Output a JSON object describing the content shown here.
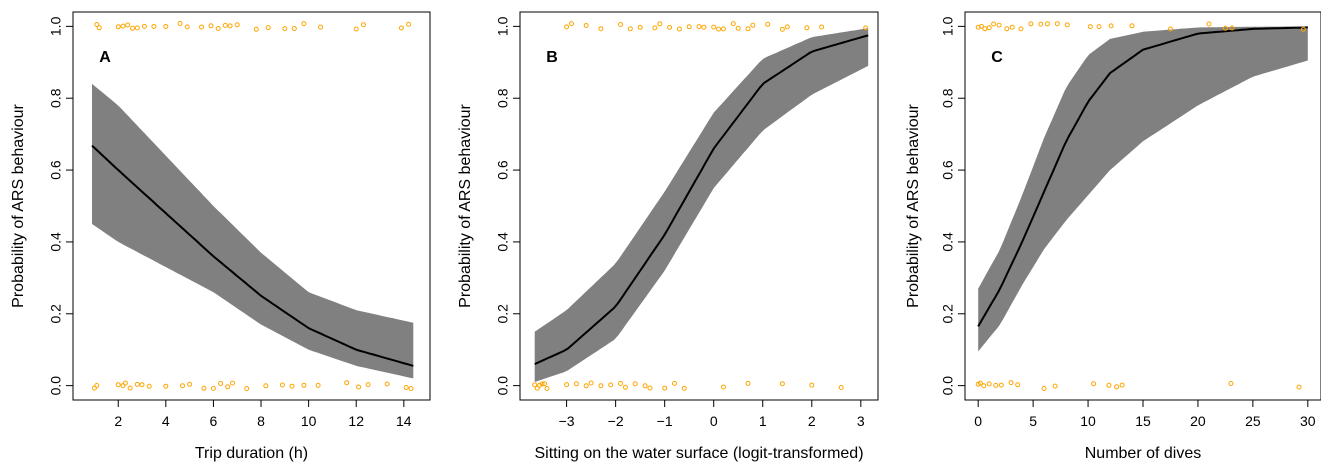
{
  "figure": {
    "colors": {
      "band": "#808080",
      "line": "#000000",
      "points": "#FFA500",
      "frame": "#000000"
    }
  },
  "chart_data": [
    {
      "type": "line",
      "panel_label": "A",
      "xlabel": "Trip duration (h)",
      "ylabel": "Probability of ARS behaviour",
      "xlim": [
        0.1,
        15.1
      ],
      "ylim": [
        -0.04,
        1.04
      ],
      "xticks": [
        2,
        4,
        6,
        8,
        10,
        12,
        14
      ],
      "yticks": [
        0.0,
        0.2,
        0.4,
        0.6,
        0.8,
        1.0
      ],
      "x_range": [
        0.9,
        14.4
      ],
      "fit": {
        "x": [
          0.9,
          2,
          4,
          6,
          8,
          10,
          12,
          14.4
        ],
        "y": [
          0.668,
          0.6,
          0.48,
          0.36,
          0.25,
          0.16,
          0.1,
          0.055
        ],
        "lower": [
          0.45,
          0.4,
          0.33,
          0.26,
          0.17,
          0.1,
          0.055,
          0.02
        ],
        "upper": [
          0.84,
          0.78,
          0.64,
          0.5,
          0.37,
          0.26,
          0.21,
          0.175
        ]
      },
      "observations": {
        "y1_x": [
          1.1,
          1.2,
          2.0,
          2.2,
          2.4,
          2.6,
          2.8,
          3.1,
          3.5,
          4.0,
          4.6,
          4.9,
          5.5,
          5.9,
          6.2,
          6.5,
          6.7,
          7.0,
          7.8,
          8.3,
          9.0,
          9.4,
          9.8,
          10.5,
          12.0,
          12.3,
          13.9,
          14.2
        ],
        "y0_x": [
          1.0,
          1.1,
          2.0,
          2.2,
          2.3,
          2.5,
          2.8,
          3.0,
          3.3,
          4.0,
          4.7,
          5.0,
          5.6,
          6.0,
          6.3,
          6.6,
          6.8,
          7.4,
          8.2,
          8.9,
          9.3,
          9.8,
          10.4,
          11.6,
          12.1,
          12.5,
          13.3,
          14.1,
          14.3
        ]
      }
    },
    {
      "type": "line",
      "panel_label": "B",
      "xlabel": "Sitting on the water surface (logit-transformed)",
      "ylabel": "Probability of ARS behaviour",
      "xlim": [
        -3.95,
        3.35
      ],
      "ylim": [
        -0.04,
        1.04
      ],
      "xticks": [
        -3,
        -2,
        -1,
        0,
        1,
        2,
        3
      ],
      "yticks": [
        0.0,
        0.2,
        0.4,
        0.6,
        0.8,
        1.0
      ],
      "x_range": [
        -3.65,
        3.15
      ],
      "fit": {
        "x": [
          -3.65,
          -3,
          -2,
          -1,
          0,
          1,
          2,
          3.15
        ],
        "y": [
          0.06,
          0.1,
          0.22,
          0.42,
          0.66,
          0.84,
          0.93,
          0.975
        ],
        "lower": [
          0.01,
          0.04,
          0.13,
          0.32,
          0.55,
          0.71,
          0.81,
          0.89
        ],
        "upper": [
          0.15,
          0.21,
          0.34,
          0.54,
          0.76,
          0.91,
          0.97,
          0.995
        ]
      },
      "observations": {
        "y1_x": [
          -3.0,
          -2.9,
          -2.6,
          -2.3,
          -1.9,
          -1.7,
          -1.5,
          -1.2,
          -1.1,
          -0.9,
          -0.7,
          -0.5,
          -0.3,
          -0.2,
          0.0,
          0.1,
          0.2,
          0.4,
          0.5,
          0.7,
          0.8,
          1.1,
          1.4,
          1.5,
          1.9,
          2.2,
          3.1
        ],
        "y0_x": [
          -3.65,
          -3.6,
          -3.55,
          -3.5,
          -3.45,
          -3.4,
          -3.0,
          -2.8,
          -2.6,
          -2.5,
          -2.3,
          -2.1,
          -1.9,
          -1.8,
          -1.6,
          -1.4,
          -1.3,
          -1.0,
          -0.8,
          -0.6,
          0.2,
          0.7,
          1.4,
          2.0,
          2.6
        ]
      }
    },
    {
      "type": "line",
      "panel_label": "C",
      "xlabel": "Number of dives",
      "ylabel": "Probability of ARS behaviour",
      "xlim": [
        -1.2,
        31.2
      ],
      "ylim": [
        -0.04,
        1.04
      ],
      "xticks": [
        0,
        5,
        10,
        15,
        20,
        25,
        30
      ],
      "yticks": [
        0.0,
        0.2,
        0.4,
        0.6,
        0.8,
        1.0
      ],
      "x_range": [
        0,
        30
      ],
      "fit": {
        "x": [
          0,
          2,
          4,
          6,
          8,
          10,
          12,
          15,
          20,
          25,
          30
        ],
        "y": [
          0.165,
          0.27,
          0.4,
          0.54,
          0.68,
          0.79,
          0.87,
          0.935,
          0.98,
          0.993,
          0.997
        ],
        "lower": [
          0.095,
          0.17,
          0.28,
          0.38,
          0.46,
          0.53,
          0.6,
          0.68,
          0.78,
          0.86,
          0.905
        ],
        "upper": [
          0.27,
          0.38,
          0.53,
          0.69,
          0.83,
          0.92,
          0.965,
          0.985,
          0.997,
          0.999,
          1.0
        ]
      },
      "observations": {
        "y1_x": [
          0,
          0.3,
          0.6,
          1.0,
          1.4,
          1.9,
          2.6,
          3.1,
          3.9,
          4.8,
          5.7,
          6.3,
          7.2,
          8.1,
          10.2,
          11.0,
          12.1,
          14.0,
          17.5,
          21.0,
          22.5,
          23.1,
          29.6
        ],
        "y0_x": [
          0,
          0.2,
          0.5,
          1.0,
          1.6,
          2.1,
          3.0,
          3.6,
          6.0,
          7.0,
          10.5,
          11.9,
          12.6,
          13.1,
          23.0,
          29.2
        ]
      }
    }
  ]
}
